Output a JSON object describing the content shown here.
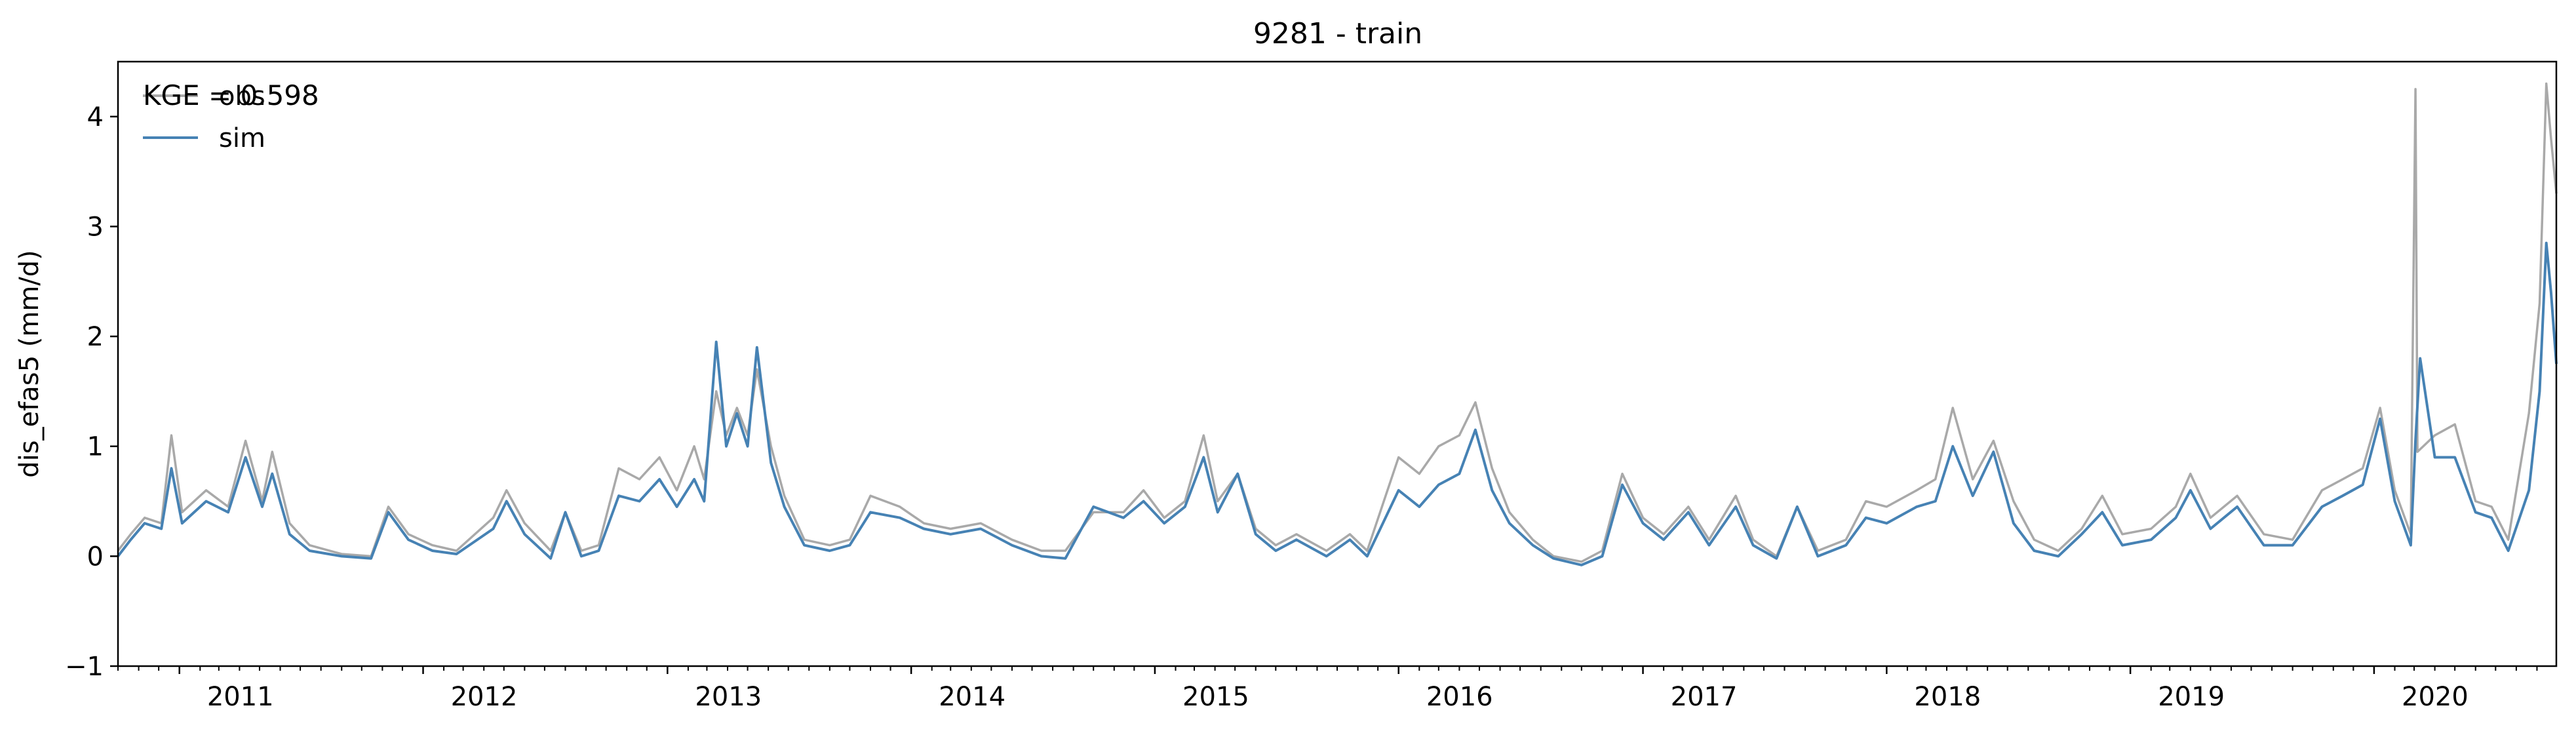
{
  "chart_data": {
    "type": "line",
    "title": "9281 - train",
    "xlabel": "",
    "ylabel": "dis_efas5 (mm/d)",
    "annotation": "KGE = 0.598",
    "xlim": [
      "2010-10-01",
      "2020-09-30"
    ],
    "ylim": [
      -1,
      4.5
    ],
    "yticks": [
      -1,
      0,
      1,
      2,
      3,
      4
    ],
    "xticks": [
      "2011",
      "2012",
      "2013",
      "2014",
      "2015",
      "2016",
      "2017",
      "2018",
      "2019",
      "2020"
    ],
    "legend": "top-left",
    "grid": false,
    "series": [
      {
        "name": "obs",
        "color": "#a9a9a9",
        "points": [
          [
            "2010-10-01",
            0.05
          ],
          [
            "2010-10-20",
            0.2
          ],
          [
            "2010-11-10",
            0.35
          ],
          [
            "2010-12-05",
            0.3
          ],
          [
            "2010-12-20",
            1.1
          ],
          [
            "2011-01-05",
            0.4
          ],
          [
            "2011-02-10",
            0.6
          ],
          [
            "2011-03-15",
            0.45
          ],
          [
            "2011-04-10",
            1.05
          ],
          [
            "2011-05-05",
            0.5
          ],
          [
            "2011-05-20",
            0.95
          ],
          [
            "2011-06-15",
            0.3
          ],
          [
            "2011-07-15",
            0.1
          ],
          [
            "2011-09-01",
            0.02
          ],
          [
            "2011-10-15",
            0.0
          ],
          [
            "2011-11-10",
            0.45
          ],
          [
            "2011-12-10",
            0.2
          ],
          [
            "2012-01-15",
            0.1
          ],
          [
            "2012-02-20",
            0.05
          ],
          [
            "2012-04-15",
            0.35
          ],
          [
            "2012-05-05",
            0.6
          ],
          [
            "2012-06-01",
            0.3
          ],
          [
            "2012-07-10",
            0.05
          ],
          [
            "2012-08-01",
            0.4
          ],
          [
            "2012-08-25",
            0.05
          ],
          [
            "2012-09-20",
            0.1
          ],
          [
            "2012-10-20",
            0.8
          ],
          [
            "2012-11-20",
            0.7
          ],
          [
            "2012-12-20",
            0.9
          ],
          [
            "2013-01-15",
            0.6
          ],
          [
            "2013-02-10",
            1.0
          ],
          [
            "2013-02-25",
            0.7
          ],
          [
            "2013-03-15",
            1.5
          ],
          [
            "2013-03-30",
            1.1
          ],
          [
            "2013-04-15",
            1.35
          ],
          [
            "2013-05-01",
            1.1
          ],
          [
            "2013-05-15",
            1.7
          ],
          [
            "2013-06-05",
            1.0
          ],
          [
            "2013-06-25",
            0.55
          ],
          [
            "2013-07-25",
            0.15
          ],
          [
            "2013-09-01",
            0.1
          ],
          [
            "2013-10-01",
            0.15
          ],
          [
            "2013-11-01",
            0.55
          ],
          [
            "2013-12-15",
            0.45
          ],
          [
            "2014-01-20",
            0.3
          ],
          [
            "2014-03-01",
            0.25
          ],
          [
            "2014-04-15",
            0.3
          ],
          [
            "2014-06-01",
            0.15
          ],
          [
            "2014-07-15",
            0.05
          ],
          [
            "2014-08-20",
            0.05
          ],
          [
            "2014-10-01",
            0.4
          ],
          [
            "2014-11-15",
            0.4
          ],
          [
            "2014-12-15",
            0.6
          ],
          [
            "2015-01-15",
            0.35
          ],
          [
            "2015-02-15",
            0.5
          ],
          [
            "2015-03-15",
            1.1
          ],
          [
            "2015-04-05",
            0.5
          ],
          [
            "2015-05-05",
            0.75
          ],
          [
            "2015-06-01",
            0.25
          ],
          [
            "2015-07-01",
            0.1
          ],
          [
            "2015-08-01",
            0.2
          ],
          [
            "2015-09-15",
            0.05
          ],
          [
            "2015-10-20",
            0.2
          ],
          [
            "2015-11-15",
            0.05
          ],
          [
            "2016-01-01",
            0.9
          ],
          [
            "2016-02-01",
            0.75
          ],
          [
            "2016-03-01",
            1.0
          ],
          [
            "2016-04-01",
            1.1
          ],
          [
            "2016-04-25",
            1.4
          ],
          [
            "2016-05-20",
            0.8
          ],
          [
            "2016-06-15",
            0.4
          ],
          [
            "2016-07-20",
            0.15
          ],
          [
            "2016-08-20",
            0.0
          ],
          [
            "2016-10-01",
            -0.05
          ],
          [
            "2016-11-01",
            0.05
          ],
          [
            "2016-12-01",
            0.75
          ],
          [
            "2017-01-01",
            0.35
          ],
          [
            "2017-02-01",
            0.2
          ],
          [
            "2017-03-10",
            0.45
          ],
          [
            "2017-04-10",
            0.15
          ],
          [
            "2017-05-20",
            0.55
          ],
          [
            "2017-06-15",
            0.15
          ],
          [
            "2017-07-20",
            0.0
          ],
          [
            "2017-08-20",
            0.45
          ],
          [
            "2017-09-20",
            0.05
          ],
          [
            "2017-11-01",
            0.15
          ],
          [
            "2017-12-01",
            0.5
          ],
          [
            "2018-01-01",
            0.45
          ],
          [
            "2018-02-15",
            0.6
          ],
          [
            "2018-03-15",
            0.7
          ],
          [
            "2018-04-10",
            1.35
          ],
          [
            "2018-05-10",
            0.7
          ],
          [
            "2018-06-10",
            1.05
          ],
          [
            "2018-07-10",
            0.5
          ],
          [
            "2018-08-10",
            0.15
          ],
          [
            "2018-09-15",
            0.05
          ],
          [
            "2018-10-20",
            0.25
          ],
          [
            "2018-11-20",
            0.55
          ],
          [
            "2018-12-20",
            0.2
          ],
          [
            "2019-02-01",
            0.25
          ],
          [
            "2019-03-10",
            0.45
          ],
          [
            "2019-04-01",
            0.75
          ],
          [
            "2019-05-01",
            0.35
          ],
          [
            "2019-06-10",
            0.55
          ],
          [
            "2019-07-20",
            0.2
          ],
          [
            "2019-09-01",
            0.15
          ],
          [
            "2019-10-15",
            0.6
          ],
          [
            "2019-11-15",
            0.7
          ],
          [
            "2019-12-15",
            0.8
          ],
          [
            "2020-01-10",
            1.35
          ],
          [
            "2020-02-01",
            0.6
          ],
          [
            "2020-02-25",
            0.2
          ],
          [
            "2020-03-03",
            4.25
          ],
          [
            "2020-03-06",
            0.95
          ],
          [
            "2020-04-01",
            1.1
          ],
          [
            "2020-05-01",
            1.2
          ],
          [
            "2020-06-01",
            0.5
          ],
          [
            "2020-06-25",
            0.45
          ],
          [
            "2020-07-20",
            0.15
          ],
          [
            "2020-08-20",
            1.3
          ],
          [
            "2020-09-05",
            2.3
          ],
          [
            "2020-09-15",
            4.3
          ],
          [
            "2020-09-22",
            3.8
          ],
          [
            "2020-09-30",
            3.3
          ]
        ]
      },
      {
        "name": "sim",
        "color": "#4682b4",
        "points": [
          [
            "2010-10-01",
            0.0
          ],
          [
            "2010-10-20",
            0.15
          ],
          [
            "2010-11-10",
            0.3
          ],
          [
            "2010-12-05",
            0.25
          ],
          [
            "2010-12-20",
            0.8
          ],
          [
            "2011-01-05",
            0.3
          ],
          [
            "2011-02-10",
            0.5
          ],
          [
            "2011-03-15",
            0.4
          ],
          [
            "2011-04-10",
            0.9
          ],
          [
            "2011-05-05",
            0.45
          ],
          [
            "2011-05-20",
            0.75
          ],
          [
            "2011-06-15",
            0.2
          ],
          [
            "2011-07-15",
            0.05
          ],
          [
            "2011-09-01",
            0.0
          ],
          [
            "2011-10-15",
            -0.02
          ],
          [
            "2011-11-10",
            0.4
          ],
          [
            "2011-12-10",
            0.15
          ],
          [
            "2012-01-15",
            0.05
          ],
          [
            "2012-02-20",
            0.02
          ],
          [
            "2012-04-15",
            0.25
          ],
          [
            "2012-05-05",
            0.5
          ],
          [
            "2012-06-01",
            0.2
          ],
          [
            "2012-07-10",
            -0.02
          ],
          [
            "2012-08-01",
            0.4
          ],
          [
            "2012-08-25",
            0.0
          ],
          [
            "2012-09-20",
            0.05
          ],
          [
            "2012-10-20",
            0.55
          ],
          [
            "2012-11-20",
            0.5
          ],
          [
            "2012-12-20",
            0.7
          ],
          [
            "2013-01-15",
            0.45
          ],
          [
            "2013-02-10",
            0.7
          ],
          [
            "2013-02-25",
            0.5
          ],
          [
            "2013-03-15",
            1.95
          ],
          [
            "2013-03-30",
            1.0
          ],
          [
            "2013-04-15",
            1.3
          ],
          [
            "2013-05-01",
            1.0
          ],
          [
            "2013-05-15",
            1.9
          ],
          [
            "2013-06-05",
            0.85
          ],
          [
            "2013-06-25",
            0.45
          ],
          [
            "2013-07-25",
            0.1
          ],
          [
            "2013-09-01",
            0.05
          ],
          [
            "2013-10-01",
            0.1
          ],
          [
            "2013-11-01",
            0.4
          ],
          [
            "2013-12-15",
            0.35
          ],
          [
            "2014-01-20",
            0.25
          ],
          [
            "2014-03-01",
            0.2
          ],
          [
            "2014-04-15",
            0.25
          ],
          [
            "2014-06-01",
            0.1
          ],
          [
            "2014-07-15",
            0.0
          ],
          [
            "2014-08-20",
            -0.02
          ],
          [
            "2014-10-01",
            0.45
          ],
          [
            "2014-11-15",
            0.35
          ],
          [
            "2014-12-15",
            0.5
          ],
          [
            "2015-01-15",
            0.3
          ],
          [
            "2015-02-15",
            0.45
          ],
          [
            "2015-03-15",
            0.9
          ],
          [
            "2015-04-05",
            0.4
          ],
          [
            "2015-05-05",
            0.75
          ],
          [
            "2015-06-01",
            0.2
          ],
          [
            "2015-07-01",
            0.05
          ],
          [
            "2015-08-01",
            0.15
          ],
          [
            "2015-09-15",
            0.0
          ],
          [
            "2015-10-20",
            0.15
          ],
          [
            "2015-11-15",
            0.0
          ],
          [
            "2016-01-01",
            0.6
          ],
          [
            "2016-02-01",
            0.45
          ],
          [
            "2016-03-01",
            0.65
          ],
          [
            "2016-04-01",
            0.75
          ],
          [
            "2016-04-25",
            1.15
          ],
          [
            "2016-05-20",
            0.6
          ],
          [
            "2016-06-15",
            0.3
          ],
          [
            "2016-07-20",
            0.1
          ],
          [
            "2016-08-20",
            -0.02
          ],
          [
            "2016-10-01",
            -0.08
          ],
          [
            "2016-11-01",
            0.0
          ],
          [
            "2016-12-01",
            0.65
          ],
          [
            "2017-01-01",
            0.3
          ],
          [
            "2017-02-01",
            0.15
          ],
          [
            "2017-03-10",
            0.4
          ],
          [
            "2017-04-10",
            0.1
          ],
          [
            "2017-05-20",
            0.45
          ],
          [
            "2017-06-15",
            0.1
          ],
          [
            "2017-07-20",
            -0.02
          ],
          [
            "2017-08-20",
            0.45
          ],
          [
            "2017-09-20",
            0.0
          ],
          [
            "2017-11-01",
            0.1
          ],
          [
            "2017-12-01",
            0.35
          ],
          [
            "2018-01-01",
            0.3
          ],
          [
            "2018-02-15",
            0.45
          ],
          [
            "2018-03-15",
            0.5
          ],
          [
            "2018-04-10",
            1.0
          ],
          [
            "2018-05-10",
            0.55
          ],
          [
            "2018-06-10",
            0.95
          ],
          [
            "2018-07-10",
            0.3
          ],
          [
            "2018-08-10",
            0.05
          ],
          [
            "2018-09-15",
            0.0
          ],
          [
            "2018-10-20",
            0.2
          ],
          [
            "2018-11-20",
            0.4
          ],
          [
            "2018-12-20",
            0.1
          ],
          [
            "2019-02-01",
            0.15
          ],
          [
            "2019-03-10",
            0.35
          ],
          [
            "2019-04-01",
            0.6
          ],
          [
            "2019-05-01",
            0.25
          ],
          [
            "2019-06-10",
            0.45
          ],
          [
            "2019-07-20",
            0.1
          ],
          [
            "2019-09-01",
            0.1
          ],
          [
            "2019-10-15",
            0.45
          ],
          [
            "2019-11-15",
            0.55
          ],
          [
            "2019-12-15",
            0.65
          ],
          [
            "2020-01-10",
            1.25
          ],
          [
            "2020-02-01",
            0.5
          ],
          [
            "2020-02-25",
            0.1
          ],
          [
            "2020-03-03",
            1.05
          ],
          [
            "2020-03-10",
            1.8
          ],
          [
            "2020-04-01",
            0.9
          ],
          [
            "2020-05-01",
            0.9
          ],
          [
            "2020-06-01",
            0.4
          ],
          [
            "2020-06-25",
            0.35
          ],
          [
            "2020-07-20",
            0.05
          ],
          [
            "2020-08-20",
            0.6
          ],
          [
            "2020-09-05",
            1.5
          ],
          [
            "2020-09-15",
            2.85
          ],
          [
            "2020-09-22",
            2.4
          ],
          [
            "2020-09-30",
            1.75
          ]
        ]
      }
    ]
  }
}
